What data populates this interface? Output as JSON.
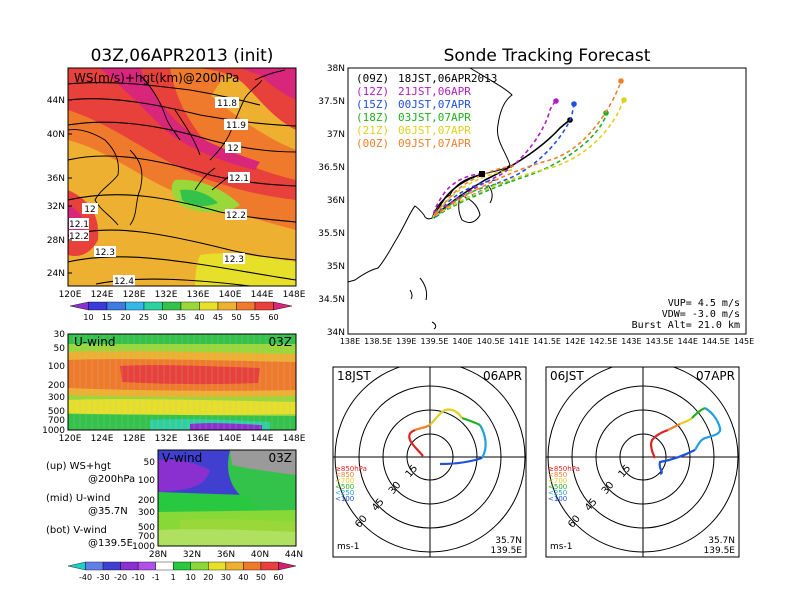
{
  "ws_panel": {
    "title": "03Z,06APR2013 (init)",
    "label": "WS(m/s)+hgt(km)@200hPa",
    "lat_ticks": [
      "44N",
      "40N",
      "36N",
      "32N",
      "28N",
      "24N"
    ],
    "lon_ticks": [
      "120E",
      "124E",
      "128E",
      "132E",
      "136E",
      "140E",
      "144E",
      "148E"
    ],
    "contour_labels": [
      "11.8",
      "11.9",
      "12",
      "12.1",
      "12.2",
      "12.3",
      "12.4",
      "12",
      "12.1",
      "12.2",
      "12.3"
    ],
    "colorbar": [
      "10",
      "15",
      "20",
      "25",
      "30",
      "35",
      "40",
      "45",
      "50",
      "55",
      "60"
    ],
    "colorbar_colors": [
      "#8b2fd0",
      "#3a3ad8",
      "#3c7be0",
      "#34b8e8",
      "#2ed0a0",
      "#33c24a",
      "#9ad83a",
      "#e6e02a",
      "#eeb030",
      "#f07a2c",
      "#e8403a",
      "#d8267a"
    ]
  },
  "u_panel": {
    "label": "U-wind",
    "time": "03Z",
    "y_ticks": [
      "30",
      "50",
      "100",
      "200",
      "300",
      "500",
      "700",
      "1000"
    ],
    "x_ticks": [
      "120E",
      "124E",
      "128E",
      "132E",
      "136E",
      "140E",
      "144E",
      "148E"
    ]
  },
  "v_panel": {
    "label": "V-wind",
    "time": "03Z",
    "y_ticks": [
      "50",
      "100",
      "200",
      "300",
      "500",
      "700",
      "1000"
    ],
    "x_ticks": [
      "28N",
      "32N",
      "36N",
      "40N",
      "44N"
    ],
    "colorbar": [
      "-40",
      "-30",
      "-20",
      "-10",
      "-1",
      "1",
      "10",
      "20",
      "30",
      "40",
      "50",
      "60"
    ],
    "colorbar_colors": [
      "#1ad0c8",
      "#6080e8",
      "#4040d0",
      "#8a30d0",
      "#b050e8",
      "#ffffff",
      "#28c840",
      "#88d838",
      "#e6e02a",
      "#eeb030",
      "#f07a2c",
      "#e8403a",
      "#d02070"
    ]
  },
  "legend": [
    {
      "line1": "(up) WS+hgt",
      "line2": "@200hPa"
    },
    {
      "line1": "(mid) U-wind",
      "line2": "@35.7N"
    },
    {
      "line1": "(bot) V-wind",
      "line2": "@139.5E"
    }
  ],
  "track": {
    "title": "Sonde Tracking Forecast",
    "runs": [
      {
        "utc": "(09Z)",
        "jst": "18JST,06APR2013",
        "color": "#000000"
      },
      {
        "utc": "(12Z)",
        "jst": "21JST,06APR",
        "color": "#b020c0"
      },
      {
        "utc": "(15Z)",
        "jst": "00JST,07APR",
        "color": "#2050e0"
      },
      {
        "utc": "(18Z)",
        "jst": "03JST,07APR",
        "color": "#20b020"
      },
      {
        "utc": "(21Z)",
        "jst": "06JST,07APR",
        "color": "#e0d020"
      },
      {
        "utc": "(00Z)",
        "jst": "09JST,07APR",
        "color": "#f08030"
      }
    ],
    "lat_ticks": [
      "38N",
      "37.5N",
      "37N",
      "36.5N",
      "36N",
      "35.5N",
      "35N",
      "34.5N",
      "34N"
    ],
    "lon_ticks": [
      "138E",
      "138.5E",
      "139E",
      "139.5E",
      "140E",
      "140.5E",
      "141E",
      "141.5E",
      "142E",
      "142.5E",
      "143E",
      "143.5E",
      "144E",
      "144.5E",
      "145E"
    ],
    "vup": "VUP= 4.5 m/s",
    "vdw": "VDW= -3.0 m/s",
    "burst": "Burst Alt= 21.0 km"
  },
  "hodo_left": {
    "time": "18JST",
    "date": "06APR",
    "ring_labels": [
      "15",
      "30",
      "45",
      "60"
    ],
    "levels": [
      "≥850hPa",
      "<850",
      "<700",
      "<500",
      "<250",
      "<100"
    ],
    "level_colors": [
      "#e02020",
      "#f08030",
      "#e0d020",
      "#20b020",
      "#20a0e0",
      "#2050e0"
    ],
    "unit": "ms-1",
    "lat": "35.7N",
    "lon": "139.5E"
  },
  "hodo_right": {
    "time": "06JST",
    "date": "07APR",
    "ring_labels": [
      "15",
      "30",
      "45",
      "60"
    ],
    "levels": [
      "≥850hPa",
      "<850",
      "<700",
      "<500",
      "<250",
      "<100"
    ],
    "level_colors": [
      "#e02020",
      "#f08030",
      "#e0d020",
      "#20b020",
      "#20a0e0",
      "#2050e0"
    ],
    "unit": "ms-1",
    "lat": "35.7N",
    "lon": "139.5E"
  }
}
